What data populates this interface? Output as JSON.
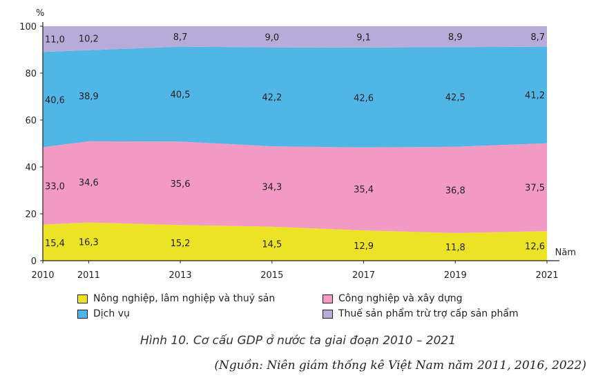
{
  "chart_data": {
    "type": "area",
    "stacked": true,
    "y_unit_label": "%",
    "x_axis_label": "Năm",
    "x": [
      2010,
      2011,
      2013,
      2015,
      2017,
      2019,
      2021
    ],
    "x_tick_labels": [
      "2010",
      "2011",
      "2013",
      "2015",
      "2017",
      "2019",
      "2021"
    ],
    "ylim": [
      0,
      100
    ],
    "y_ticks": [
      0,
      20,
      40,
      60,
      80,
      100
    ],
    "y_tick_labels": [
      "0",
      "20",
      "40",
      "60",
      "80",
      "100"
    ],
    "series": [
      {
        "name": "Nông nghiệp, lâm nghiệp và thuỷ sản",
        "color": "#ece327",
        "values": [
          15.4,
          16.3,
          15.2,
          14.5,
          12.9,
          11.8,
          12.6
        ],
        "labels": [
          "15,4",
          "16,3",
          "15,2",
          "14,5",
          "12,9",
          "11,8",
          "12,6"
        ]
      },
      {
        "name": "Công nghiệp và xây dựng",
        "color": "#f29ac3",
        "values": [
          33.0,
          34.6,
          35.6,
          34.3,
          35.4,
          36.8,
          37.5
        ],
        "labels": [
          "33,0",
          "34,6",
          "35,6",
          "34,3",
          "35,4",
          "36,8",
          "37,5"
        ]
      },
      {
        "name": "Dịch vụ",
        "color": "#4fb6e6",
        "values": [
          40.6,
          38.9,
          40.5,
          42.2,
          42.6,
          42.5,
          41.2
        ],
        "labels": [
          "40,6",
          "38,9",
          "40,5",
          "42,2",
          "42,6",
          "42,5",
          "41,2"
        ]
      },
      {
        "name": "Thuế sản phẩm trừ trợ cấp sản phẩm",
        "color": "#b7acd9",
        "values": [
          11.0,
          10.2,
          8.7,
          9.0,
          9.1,
          8.9,
          8.7
        ],
        "labels": [
          "11,0",
          "10,2",
          "8,7",
          "9,0",
          "9,1",
          "8,9",
          "8,7"
        ]
      }
    ],
    "legend_order": [
      0,
      2,
      1,
      3
    ],
    "title": "Hình 10. Cơ cấu GDP ở nước ta giai đoạn 2010 – 2021"
  },
  "caption": "Hình 10. Cơ cấu GDP ở nước ta giai đoạn 2010 – 2021",
  "source": "(Nguồn: Niên giám thống kê Việt Nam năm 2011, 2016, 2022)"
}
